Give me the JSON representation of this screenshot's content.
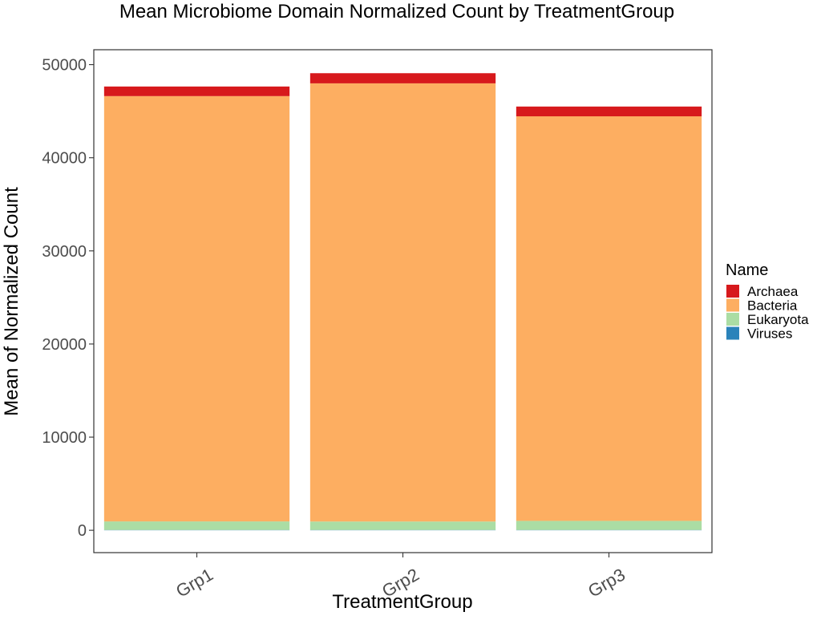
{
  "chart_data": {
    "type": "bar",
    "stacked": true,
    "title": "Mean Microbiome Domain Normalized Count by TreatmentGroup",
    "xlabel": "TreatmentGroup",
    "ylabel": "Mean of Normalized Count",
    "categories": [
      "Grp1",
      "Grp2",
      "Grp3"
    ],
    "ylim": [
      -2400,
      51600
    ],
    "yticks": [
      0,
      10000,
      20000,
      30000,
      40000,
      50000
    ],
    "grid": false,
    "legend": {
      "title": "Name",
      "position": "right"
    },
    "series": [
      {
        "name": "Viruses",
        "color": "#2b83ba",
        "values": [
          30,
          30,
          30
        ]
      },
      {
        "name": "Eukaryota",
        "color": "#abdda4",
        "values": [
          920,
          910,
          980
        ]
      },
      {
        "name": "Bacteria",
        "color": "#fdae61",
        "values": [
          45670,
          47050,
          43440
        ]
      },
      {
        "name": "Archaea",
        "color": "#d7191c",
        "values": [
          1030,
          1090,
          1050
        ]
      }
    ],
    "legend_order": [
      "Archaea",
      "Bacteria",
      "Eukaryota",
      "Viruses"
    ]
  }
}
